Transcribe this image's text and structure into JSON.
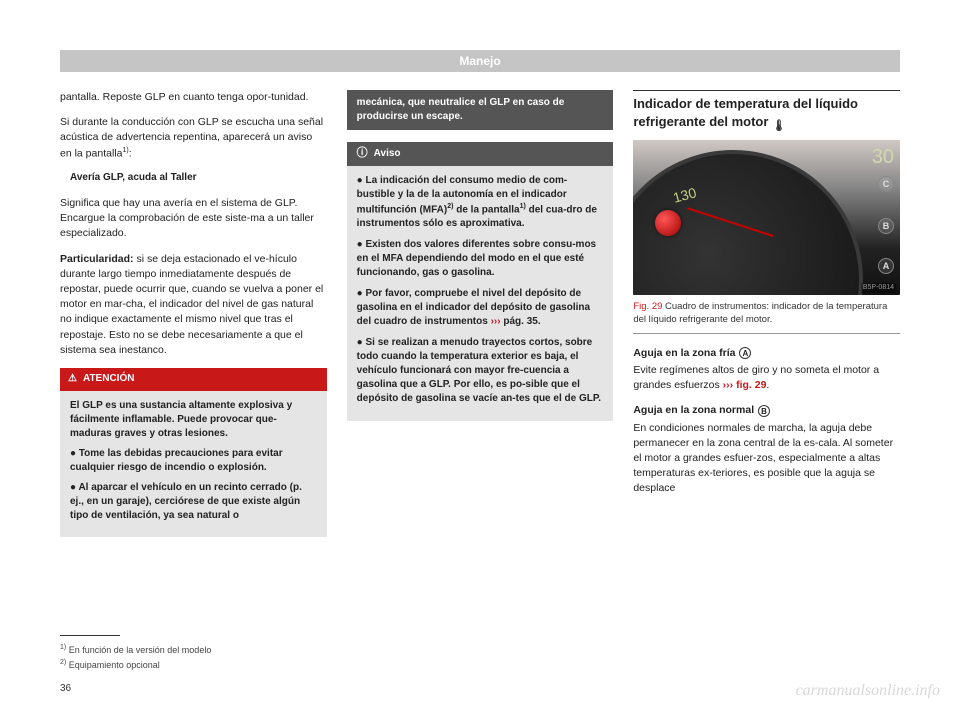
{
  "header": "Manejo",
  "col1": {
    "p1": "pantalla. Reposte GLP en cuanto tenga opor-tunidad.",
    "p2_a": "Si durante la conducción con GLP se escucha una señal acústica de advertencia repentina, aparecerá un aviso en la pantalla",
    "p2_sup": "1)",
    "p2_b": ":",
    "sub1": "Avería GLP, acuda al Taller",
    "p3": "Significa que hay una avería en el sistema de GLP. Encargue la comprobación de este siste-ma a un taller especializado.",
    "p4_bold": "Particularidad:",
    "p4_rest": " si se deja estacionado el ve-hículo durante largo tiempo inmediatamente después de repostar, puede ocurrir que, cuando se vuelva a poner el motor en mar-cha, el indicador del nivel de gas natural no indique exactamente el mismo nivel que tras el repostaje. Esto no se debe necesariamente a que el sistema sea inestanco.",
    "atencion_label": "ATENCIÓN",
    "atencion_p1": "El GLP es una sustancia altamente explosiva y fácilmente inflamable. Puede provocar que-maduras graves y otras lesiones.",
    "atencion_p2": "● Tome las debidas precauciones para evitar cualquier riesgo de incendio o explosión.",
    "atencion_p3": "● Al aparcar el vehículo en un recinto cerrado (p. ej., en un garaje), cerciórese de que existe algún tipo de ventilación, ya sea natural o"
  },
  "col2": {
    "dark1": "mecánica, que neutralice el GLP en caso de producirse un escape.",
    "aviso_label": "Aviso",
    "aviso_p1_a": "● La indicación del consumo medio de com-bustible y la de la autonomía en el indicador multifunción (MFA)",
    "aviso_p1_sup1": "2)",
    "aviso_p1_b": " de la pantalla",
    "aviso_p1_sup2": "1)",
    "aviso_p1_c": " del cua-dro de instrumentos sólo es aproximativa.",
    "aviso_p2": "● Existen dos valores diferentes sobre consu-mos en el MFA dependiendo del modo en el que esté funcionando, gas o gasolina.",
    "aviso_p3_a": "● Por favor, compruebe el nivel del depósito de gasolina en el indicador del depósito de gasolina del cuadro de instrumentos ",
    "aviso_p3_chev": "›››",
    "aviso_p3_b": " pág. 35.",
    "aviso_p4": "● Si se realizan a menudo trayectos cortos, sobre todo cuando la temperatura exterior es baja, el vehículo funcionará con mayor fre-cuencia a gasolina que a GLP. Por ello, es po-sible que el depósito de gasolina se vacíe an-tes que el de GLP."
  },
  "col3": {
    "title_a": "Indicador de temperatura del líquido refrigerante del motor ",
    "gauge": {
      "label_130": "130",
      "label_30": "30",
      "marker_a": "A",
      "marker_b": "B",
      "marker_c": "C",
      "ref": "B5P-0814"
    },
    "caption_num": "Fig. 29",
    "caption_text": "  Cuadro de instrumentos: indicador de la temperatura del líquido refrigerante del motor.",
    "sub_a_label": "Aguja en la zona fría ",
    "sub_a_circle": "A",
    "sub_a_text_a": "Evite regímenes altos de giro y no someta el motor a grandes esfuerzos ",
    "sub_a_chev": "›››",
    "sub_a_link": " fig. 29",
    "sub_a_text_b": ".",
    "sub_b_label": "Aguja en la zona normal ",
    "sub_b_circle": "B",
    "sub_b_text": "En condiciones normales de marcha, la aguja debe permanecer en la zona central de la es-cala. Al someter el motor a grandes esfuer-zos, especialmente a altas temperaturas ex-teriores, es posible que la aguja se desplace"
  },
  "footnotes": {
    "f1_sup": "1)",
    "f1": " En función de la versión del modelo",
    "f2_sup": "2)",
    "f2": " Equipamiento opcional"
  },
  "page_number": "36",
  "watermark": "carmanualsonline.info",
  "colors": {
    "header_bg": "#c5c5c5",
    "atencion_red": "#c81818",
    "box_grey": "#e5e5e5",
    "dark_grey": "#555"
  }
}
